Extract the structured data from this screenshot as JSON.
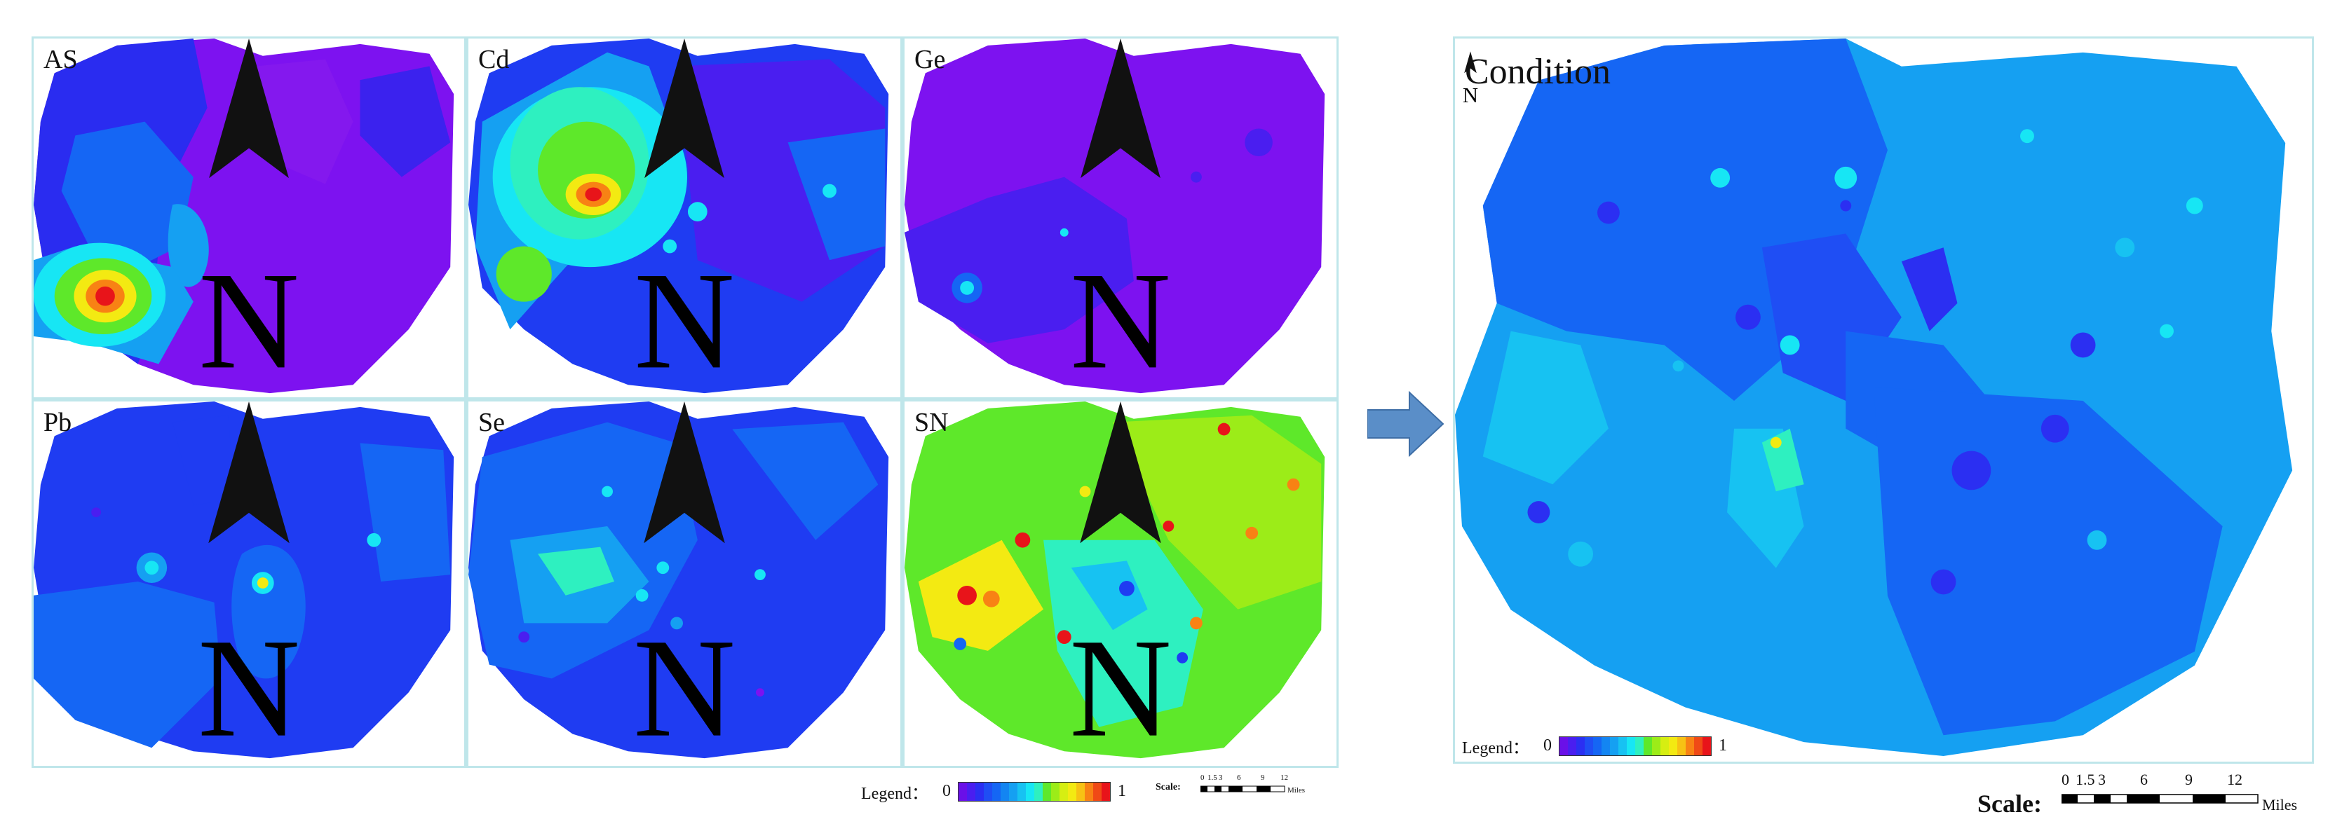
{
  "colors": {
    "violet": "#7d12f0",
    "indigo": "#4a1ef0",
    "blue": "#1f3cf2",
    "mid_blue": "#1566f4",
    "light_blue": "#15a0f2",
    "cyan": "#17e6f4",
    "green": "#5ee82a",
    "yellow": "#f3ea12",
    "orange": "#f88214",
    "red": "#e8141a",
    "frame": "#bfe6ea",
    "arrow": "#5a8ec8"
  },
  "panels": [
    {
      "id": "as",
      "title": "AS"
    },
    {
      "id": "cd",
      "title": "Cd"
    },
    {
      "id": "ge",
      "title": "Ge"
    },
    {
      "id": "pb",
      "title": "Pb"
    },
    {
      "id": "se",
      "title": "Se"
    },
    {
      "id": "sn",
      "title": "SN"
    }
  ],
  "north_label": "N",
  "small_legend": {
    "label": "Legend：",
    "min": "0",
    "max": "1"
  },
  "small_scale": {
    "label": "Scale:",
    "ticks": [
      "0",
      "1.5",
      "3",
      "6",
      "9",
      "12"
    ],
    "unit": "Miles"
  },
  "condition": {
    "title": "Condition"
  },
  "big_legend": {
    "label": "Legend：",
    "min": "0",
    "max": "1"
  },
  "big_scale": {
    "label": "Scale:",
    "ticks": [
      "0",
      "1.5",
      "3",
      "6",
      "9",
      "12"
    ],
    "unit": "Miles"
  },
  "legend_colors": [
    "#6a10e8",
    "#4a1ef0",
    "#2b2ff2",
    "#1f4ef4",
    "#1566f4",
    "#1385f2",
    "#15a0f2",
    "#17c2f2",
    "#17e6f4",
    "#2ef0c0",
    "#5ee82a",
    "#9cec18",
    "#d6ee12",
    "#f3ea12",
    "#f7c214",
    "#f88214",
    "#f04a16",
    "#e8141a"
  ]
}
